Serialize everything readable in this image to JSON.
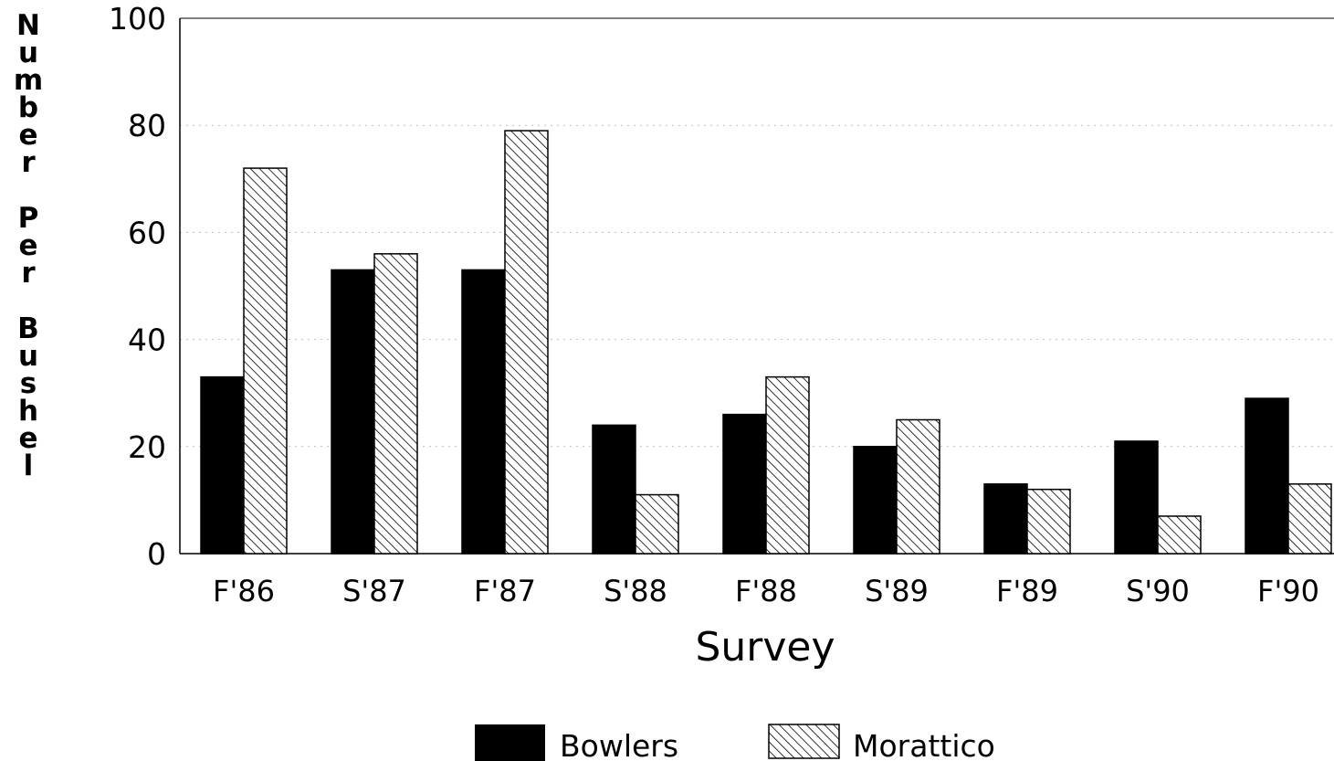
{
  "chart_data": {
    "type": "bar",
    "title": "",
    "xlabel": "Survey",
    "ylabel": "Number Per Bushel",
    "categories": [
      "F'86",
      "S'87",
      "F'87",
      "S'88",
      "F'88",
      "S'89",
      "F'89",
      "S'90",
      "F'90"
    ],
    "series": [
      {
        "name": "Bowlers",
        "fill": "solid",
        "color": "#000000",
        "values": [
          33,
          53,
          53,
          24,
          26,
          20,
          13,
          21,
          29
        ]
      },
      {
        "name": "Morattico",
        "fill": "hatched",
        "color": "#000000",
        "values": [
          72,
          56,
          79,
          11,
          33,
          25,
          12,
          7,
          13
        ]
      }
    ],
    "ylim": [
      0,
      100
    ],
    "yticks": [
      "0",
      "20",
      "40",
      "60",
      "80",
      "100"
    ],
    "grid": "faint horizontal dotted",
    "legend_position": "bottom-center"
  }
}
